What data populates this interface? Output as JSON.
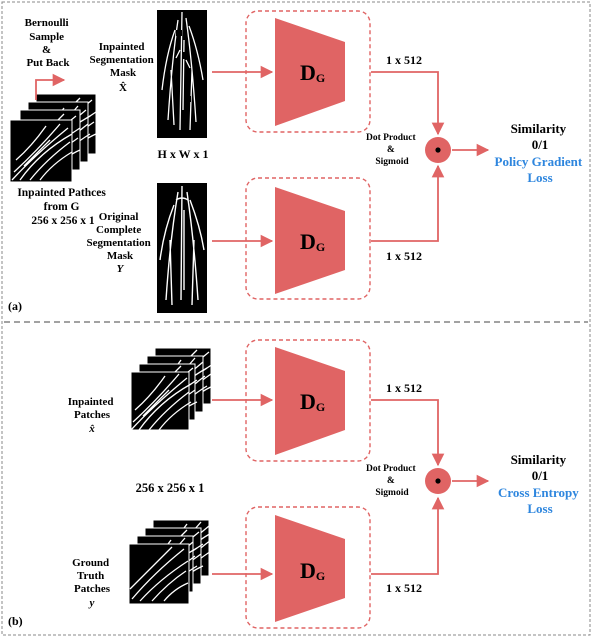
{
  "colors": {
    "discriminator_fill": "#e06464",
    "arrow": "#e06464",
    "dashed_box": "#e06464",
    "loss_text": "#2e86de",
    "mask_bg": "#000000",
    "crack": "#ffffff"
  },
  "panel_a": {
    "label": "(a)",
    "bernoulli": [
      "Bernoulli",
      "Sample",
      "&",
      "Put Back"
    ],
    "inpainted_mask": [
      "Inpainted",
      "Segmentation",
      "Mask"
    ],
    "inpainted_mask_symbol": "X̂",
    "patches_caption": [
      "Inpainted Pathces",
      "from G",
      "256 x 256 x 1"
    ],
    "mask_size": "H x W x 1",
    "original_mask": [
      "Original",
      "Complete",
      "Segmentation",
      "Mask"
    ],
    "original_mask_symbol": "Y",
    "discriminator_top": {
      "main": "D",
      "sub": "G"
    },
    "discriminator_bottom": {
      "main": "D",
      "sub": "G"
    },
    "feat_top": "1 x 512",
    "feat_bottom": "1 x 512",
    "op_label": [
      "Dot Product",
      "&",
      "Sigmoid"
    ],
    "result": [
      "Similarity",
      "0/1"
    ],
    "loss": [
      "Policy Gradient",
      "Loss"
    ]
  },
  "panel_b": {
    "label": "(b)",
    "inpainted": [
      "Inpainted",
      "Patches"
    ],
    "inpainted_symbol": "x̂",
    "patch_size": "256 x 256 x 1",
    "ground_truth": [
      "Ground",
      "Truth",
      "Patches"
    ],
    "ground_truth_symbol": "y",
    "discriminator_top": {
      "main": "D",
      "sub": "G"
    },
    "discriminator_bottom": {
      "main": "D",
      "sub": "G"
    },
    "feat_top": "1 x 512",
    "feat_bottom": "1 x 512",
    "op_label": [
      "Dot Product",
      "&",
      "Sigmoid"
    ],
    "result": [
      "Similarity",
      "0/1"
    ],
    "loss": [
      "Cross Entropy",
      "Loss"
    ]
  }
}
